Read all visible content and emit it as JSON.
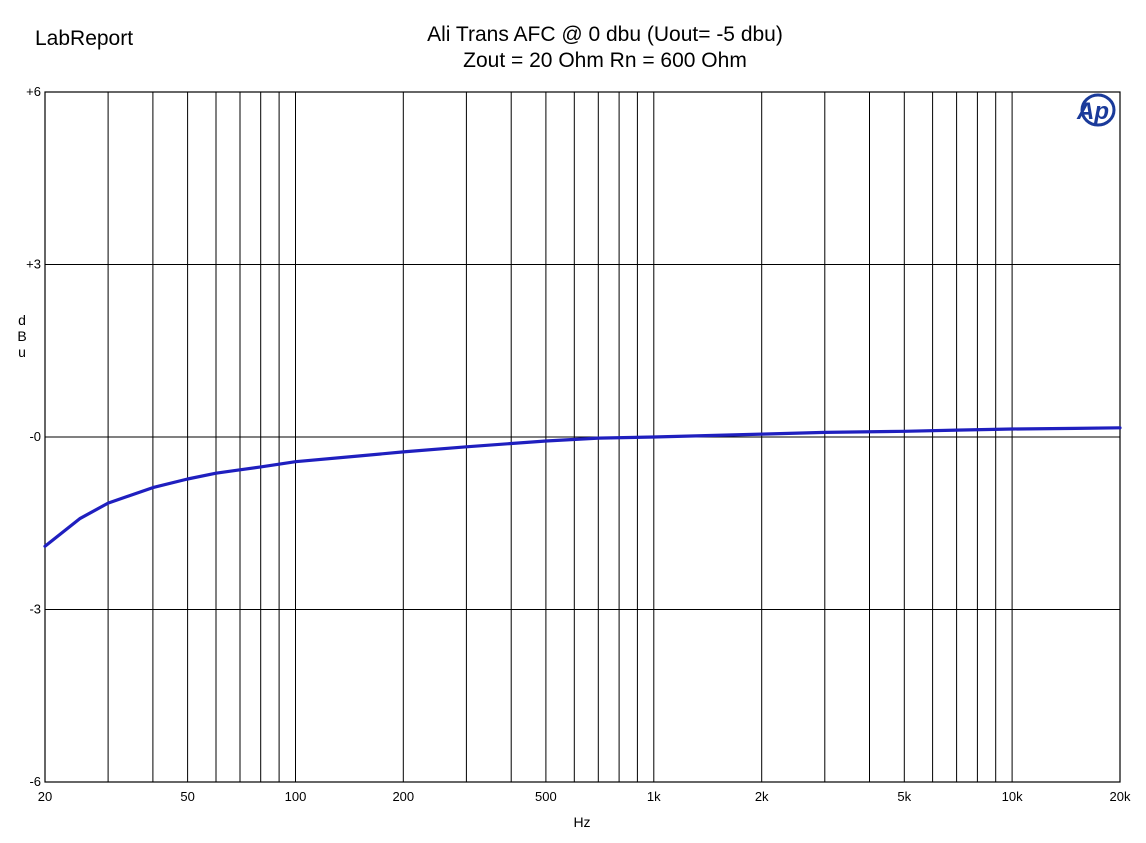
{
  "header": {
    "brand": "LabReport",
    "title_line1": "Ali Trans AFC @ 0 dbu  (Uout= -5 dbu)",
    "title_line2": "Zout = 20 Ohm  Rn = 600 Ohm"
  },
  "logo": {
    "text": "Ap",
    "color": "#1a3a9a"
  },
  "chart_data": {
    "type": "line",
    "x_scale": "log",
    "xlabel": "Hz",
    "ylabel": "dBu",
    "xlim": [
      20,
      20000
    ],
    "ylim": [
      -6,
      6
    ],
    "grid": true,
    "x_gridlines": [
      20,
      30,
      40,
      50,
      60,
      70,
      80,
      90,
      100,
      200,
      300,
      400,
      500,
      600,
      700,
      800,
      900,
      1000,
      2000,
      3000,
      4000,
      5000,
      6000,
      7000,
      8000,
      9000,
      10000,
      20000
    ],
    "x_ticks": [
      {
        "value": 20,
        "label": "20"
      },
      {
        "value": 50,
        "label": "50"
      },
      {
        "value": 100,
        "label": "100"
      },
      {
        "value": 200,
        "label": "200"
      },
      {
        "value": 500,
        "label": "500"
      },
      {
        "value": 1000,
        "label": "1k"
      },
      {
        "value": 2000,
        "label": "2k"
      },
      {
        "value": 5000,
        "label": "5k"
      },
      {
        "value": 10000,
        "label": "10k"
      },
      {
        "value": 20000,
        "label": "20k"
      }
    ],
    "y_ticks": [
      {
        "value": 6,
        "label": "+6"
      },
      {
        "value": 3,
        "label": "+3"
      },
      {
        "value": 0,
        "label": "-0"
      },
      {
        "value": -3,
        "label": "-3"
      },
      {
        "value": -6,
        "label": "-6"
      }
    ],
    "series": [
      {
        "color": "#1f1fbf",
        "x": [
          20,
          25,
          30,
          40,
          50,
          60,
          70,
          80,
          100,
          150,
          200,
          300,
          500,
          700,
          1000,
          2000,
          3000,
          5000,
          7000,
          10000,
          15000,
          20000
        ],
        "y": [
          -1.9,
          -1.42,
          -1.15,
          -0.88,
          -0.73,
          -0.63,
          -0.57,
          -0.52,
          -0.43,
          -0.33,
          -0.26,
          -0.17,
          -0.07,
          -0.02,
          0.0,
          0.05,
          0.08,
          0.1,
          0.12,
          0.14,
          0.15,
          0.16
        ]
      }
    ]
  }
}
